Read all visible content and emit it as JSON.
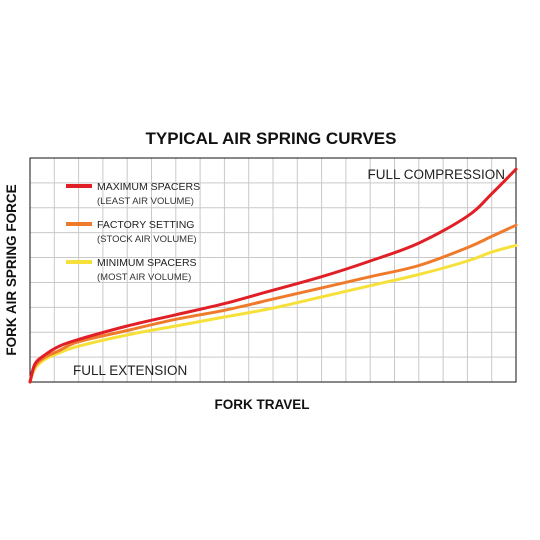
{
  "chart_data": {
    "type": "line",
    "title": "TYPICAL AIR SPRING CURVES",
    "xlabel": "FORK TRAVEL",
    "ylabel": "FORK AIR SPRING FORCE",
    "grid": true,
    "xlim": [
      0,
      100
    ],
    "ylim": [
      0,
      100
    ],
    "legend_position": "top-left",
    "annotations": {
      "top_right": "FULL COMPRESSION",
      "bottom_left": "FULL EXTENSION"
    },
    "x": [
      0,
      1,
      3,
      6,
      10,
      20,
      30,
      40,
      50,
      60,
      70,
      80,
      90,
      95,
      100
    ],
    "series": [
      {
        "name": "MAXIMUM SPACERS",
        "sublabel": "(LEAST AIR VOLUME)",
        "color": "#e11f26",
        "values": [
          0,
          8,
          12,
          16,
          19,
          25,
          30,
          35,
          41,
          47,
          54,
          62,
          74,
          84,
          95
        ]
      },
      {
        "name": "FACTORY SETTING",
        "sublabel": "(STOCK AIR VOLUME)",
        "color": "#f07a2b",
        "values": [
          0,
          7,
          11,
          14,
          18,
          23,
          28,
          32,
          37,
          42,
          47,
          52,
          60,
          65,
          70
        ]
      },
      {
        "name": "MINIMUM SPACERS",
        "sublabel": "(MOST AIR VOLUME)",
        "color": "#f6e03a",
        "values": [
          0,
          6,
          10,
          13,
          16,
          21,
          25,
          29,
          33,
          38,
          43,
          48,
          54,
          58,
          61
        ]
      }
    ]
  }
}
